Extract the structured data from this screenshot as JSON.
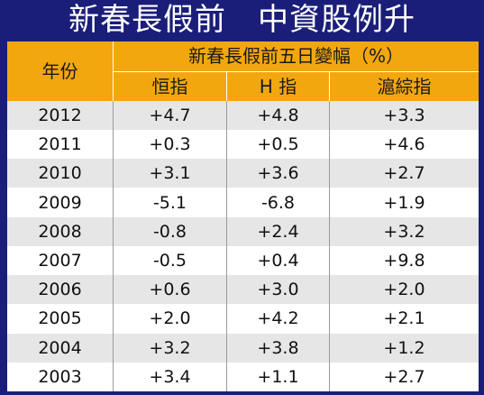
{
  "title": "新春長假前　中資股例升",
  "chart_data": {
    "type": "table",
    "title": "新春長假前　中資股例升",
    "year_header": "年份",
    "group_header": "新春長假前五日變幅（%）",
    "columns": [
      "恒指",
      "H 指",
      "滬綜指"
    ],
    "rows": [
      {
        "year": "2012",
        "values": [
          "+4.7",
          "+4.8",
          "+3.3"
        ]
      },
      {
        "year": "2011",
        "values": [
          "+0.3",
          "+0.5",
          "+4.6"
        ]
      },
      {
        "year": "2010",
        "values": [
          "+3.1",
          "+3.6",
          "+2.7"
        ]
      },
      {
        "year": "2009",
        "values": [
          "-5.1",
          "-6.8",
          "+1.9"
        ]
      },
      {
        "year": "2008",
        "values": [
          "-0.8",
          "+2.4",
          "+3.2"
        ]
      },
      {
        "year": "2007",
        "values": [
          "-0.5",
          "+0.4",
          "+9.8"
        ]
      },
      {
        "year": "2006",
        "values": [
          "+0.6",
          "+3.0",
          "+2.0"
        ]
      },
      {
        "year": "2005",
        "values": [
          "+2.0",
          "+4.2",
          "+2.1"
        ]
      },
      {
        "year": "2004",
        "values": [
          "+3.2",
          "+3.8",
          "+1.2"
        ]
      },
      {
        "year": "2003",
        "values": [
          "+3.4",
          "+1.1",
          "+2.7"
        ]
      }
    ]
  },
  "colors": {
    "background": "#1b1e78",
    "header": "#f2a70f",
    "row_alt": "#e6e6e6"
  }
}
